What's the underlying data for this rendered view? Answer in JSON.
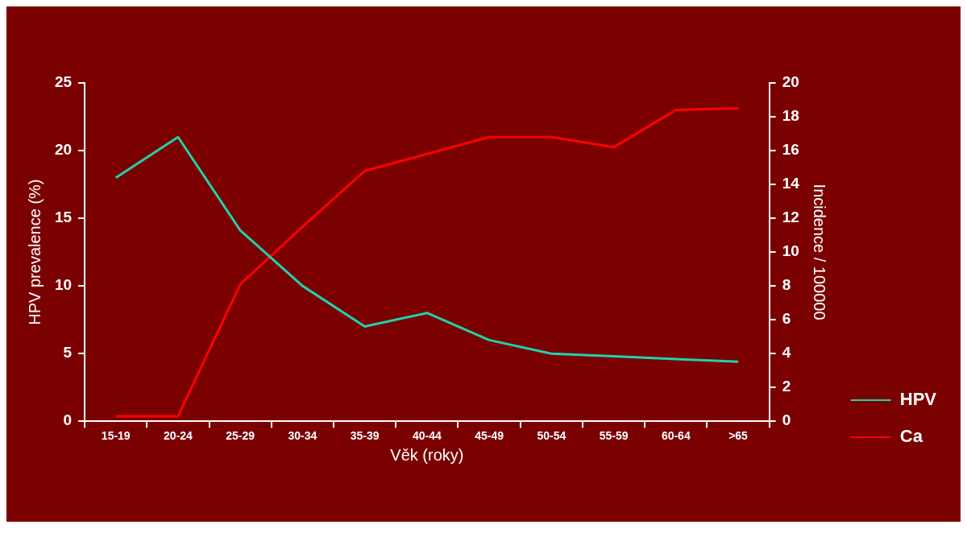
{
  "chart_data": {
    "type": "line",
    "xlabel": "Věk (roky)",
    "ylabel": "HPV prevalence (%)",
    "y2label": "Incidence / 100000",
    "categories": [
      "15-19",
      "20-24",
      "25-29",
      "30-34",
      "35-39",
      "40-44",
      "45-49",
      "50-54",
      "55-59",
      "60-64",
      ">65"
    ],
    "series": [
      {
        "name": "HPV",
        "color": "#1fd1b0",
        "values": [
          18,
          21,
          14.1,
          10,
          7,
          8,
          6,
          5,
          4.8,
          4.6,
          4.4
        ]
      },
      {
        "name": "Ca",
        "color": "#ff0000",
        "axis": "y2",
        "values": [
          0.3,
          0.3,
          8.1,
          11.5,
          14.8,
          15.8,
          16.8,
          16.8,
          16.2,
          18.4,
          18.5
        ]
      }
    ],
    "ylim": [
      0,
      25
    ],
    "yticks": [
      0,
      5,
      10,
      15,
      20,
      25
    ],
    "y2lim": [
      0,
      20
    ],
    "y2ticks": [
      0,
      2,
      4,
      6,
      8,
      10,
      12,
      14,
      16,
      18,
      20
    ],
    "grid": false,
    "legend": "bottom right",
    "marker": "none",
    "line_style": "solid"
  }
}
